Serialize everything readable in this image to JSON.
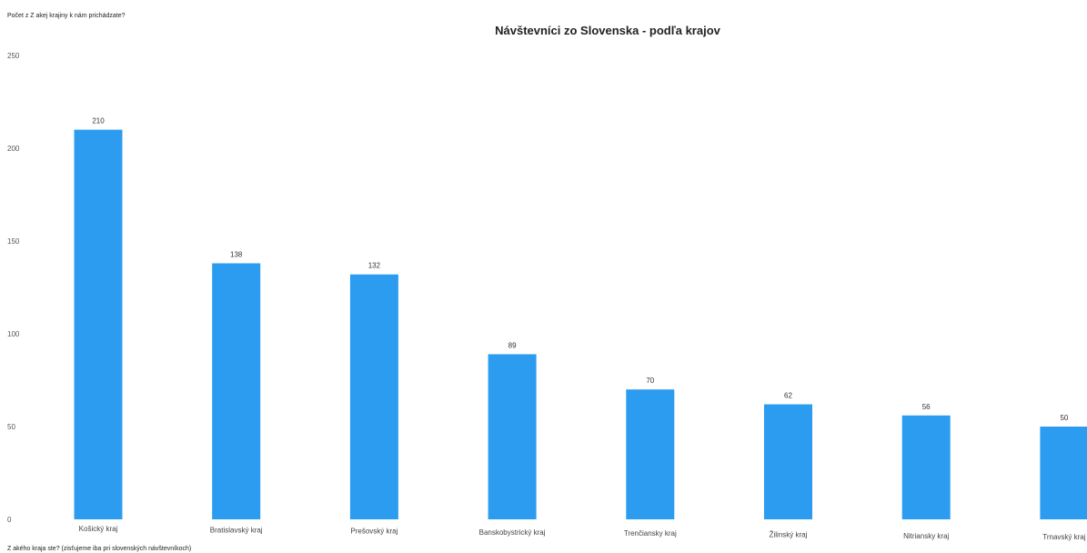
{
  "chart_data": {
    "type": "bar",
    "title": "Návštevníci zo Slovenska  - podľa krajov",
    "ylabel": "Počet z Z akej krajiny k nám prichádzate?",
    "xlabel": "Z akého kraja ste? (zisťujeme iba pri slovenských návštevníkoch)",
    "categories": [
      "Košický kraj",
      "Bratislavský kraj",
      "Prešovský kraj",
      "Banskobystrický kraj",
      "Trenčiansky kraj",
      "Žilinský kraj",
      "Nitriansky kraj",
      "Trnavský kraj"
    ],
    "values": [
      210,
      138,
      132,
      89,
      70,
      62,
      56,
      50
    ],
    "ylim": [
      0,
      250
    ],
    "yticks": [
      0,
      50,
      100,
      150,
      200,
      250
    ],
    "grid": false,
    "legend": "none",
    "bar_color": "#2c9cf0"
  }
}
